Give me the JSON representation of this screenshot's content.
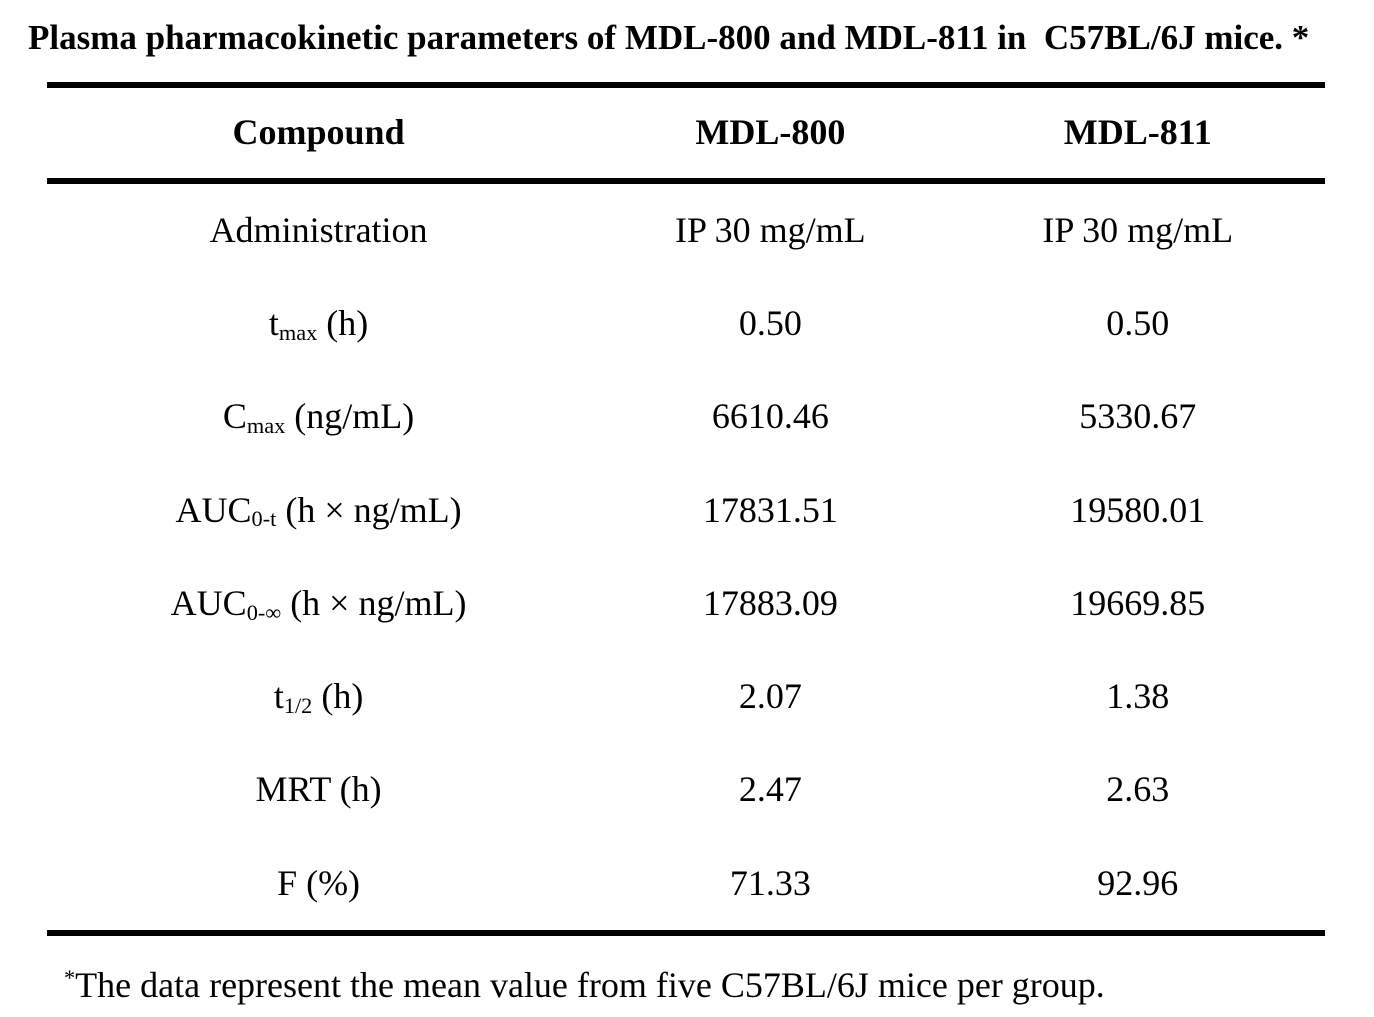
{
  "title": "Plasma pharmacokinetic parameters of MDL-800 and MDL-811 in  C57BL/6J mice. *",
  "table": {
    "header": [
      "Compound",
      "MDL-800",
      "MDL-811"
    ],
    "rows": [
      {
        "param": {
          "prefix": "Administration",
          "sub": "",
          "suffix": ""
        },
        "mdl800": "IP 30 mg/mL",
        "mdl811": "IP 30 mg/mL"
      },
      {
        "param": {
          "prefix": "t",
          "sub": "max",
          "suffix": " (h)"
        },
        "mdl800": "0.50",
        "mdl811": "0.50"
      },
      {
        "param": {
          "prefix": "C",
          "sub": "max",
          "suffix": " (ng/mL)"
        },
        "mdl800": "6610.46",
        "mdl811": "5330.67"
      },
      {
        "param": {
          "prefix": "AUC",
          "sub": "0-t",
          "suffix": " (h × ng/mL)"
        },
        "mdl800": "17831.51",
        "mdl811": "19580.01"
      },
      {
        "param": {
          "prefix": "AUC",
          "sub": "0-∞",
          "suffix": " (h × ng/mL)"
        },
        "mdl800": "17883.09",
        "mdl811": "19669.85"
      },
      {
        "param": {
          "prefix": "t",
          "sub": "1/2",
          "suffix": " (h)"
        },
        "mdl800": "2.07",
        "mdl811": "1.38"
      },
      {
        "param": {
          "prefix": "MRT (h)",
          "sub": "",
          "suffix": ""
        },
        "mdl800": "2.47",
        "mdl811": "2.63"
      },
      {
        "param": {
          "prefix": "F (%)",
          "sub": "",
          "suffix": ""
        },
        "mdl800": "71.33",
        "mdl811": "92.96"
      }
    ]
  },
  "footnote": {
    "marker": "*",
    "text": "The data represent the mean value from five C57BL/6J mice per group."
  },
  "colors": {
    "text": "#000000",
    "background": "#ffffff",
    "rule": "#000000"
  }
}
